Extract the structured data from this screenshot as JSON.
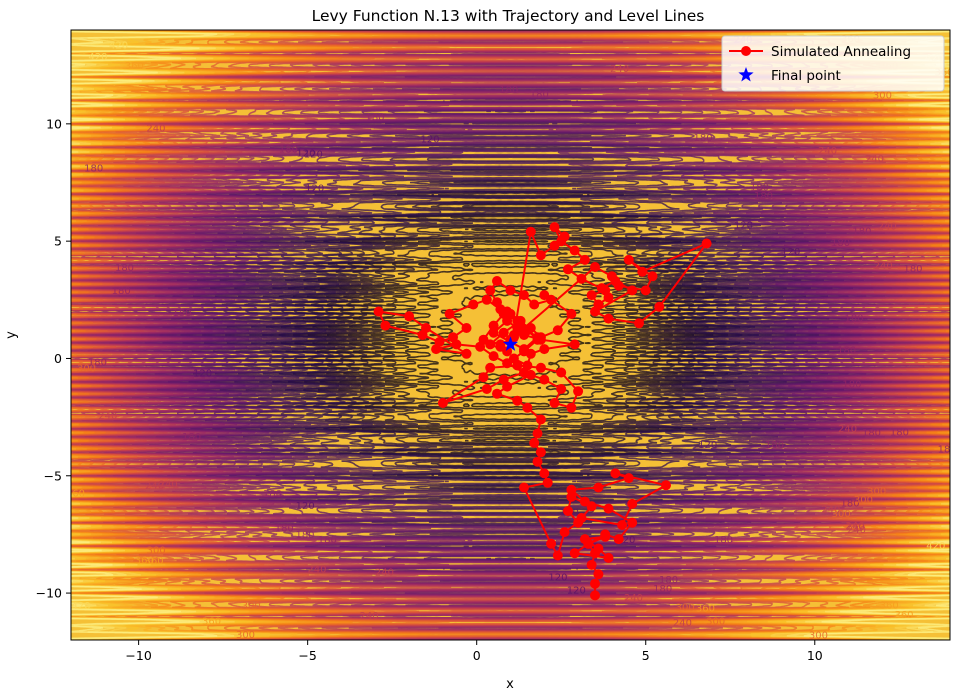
{
  "chart_data": {
    "type": "line",
    "title": "Levy Function N.13 with Trajectory and Level Lines",
    "xlabel": "x",
    "ylabel": "y",
    "xlim": [
      -12,
      14
    ],
    "ylim": [
      -12,
      14
    ],
    "x_ticks": [
      -10,
      -5,
      0,
      5,
      10
    ],
    "y_ticks": [
      -10,
      -5,
      0,
      5,
      10
    ],
    "x_tick_labels": [
      "−10",
      "−5",
      "0",
      "5",
      "10"
    ],
    "y_tick_labels": [
      "−10",
      "−5",
      "0",
      "5",
      "10"
    ],
    "grid": false,
    "legend": {
      "position": "top-right",
      "entries": [
        {
          "label": "Simulated Annealing",
          "color": "#ff0000",
          "marker": "circle"
        },
        {
          "label": "Final point",
          "color": "#0000ff",
          "marker": "star"
        }
      ]
    },
    "contour": {
      "function": "Levy N.13",
      "colormap": "inferno",
      "level_labels": [
        "120",
        "180",
        "240",
        "300",
        "360",
        "420"
      ],
      "background_color": "#f5c036"
    },
    "series": [
      {
        "name": "Simulated Annealing",
        "color": "#ff0000",
        "x": [
          3.5,
          3.5,
          3.6,
          3.4,
          3.5,
          3.3,
          3.8,
          3.2,
          3.6,
          3.9,
          2.9,
          3.3,
          3.8,
          4.2,
          4.6,
          3.9,
          3.2,
          2.8,
          3.6,
          4.5,
          4.1,
          5.6,
          4.6,
          4.3,
          3.1,
          3.4,
          2.8,
          2.7,
          3.0,
          2.6,
          2.4,
          2.2,
          1.4,
          2.1,
          2.0,
          1.8,
          1.9,
          1.7,
          1.8,
          1.9,
          1.5,
          1.2,
          0.6,
          0.9,
          1.6,
          2.0,
          2.5,
          2.3,
          2.8,
          3.0,
          2.5,
          1.9,
          1.2,
          0.4,
          0.2,
          -1.0,
          0.3,
          0.8,
          1.4,
          0.9,
          0.5,
          0.1,
          -0.6,
          -1.2,
          -0.3,
          -1.5,
          -2.0,
          -2.9,
          -2.7,
          -1.6,
          -1.1,
          -0.7,
          -0.3,
          -0.8,
          -0.1,
          0.3,
          0.7,
          0.4,
          0.6,
          1.0,
          1.4,
          1.7,
          2.2,
          2.0,
          2.8,
          2.4,
          1.9,
          1.6,
          1.2,
          0.8,
          0.5,
          0.2,
          0.7,
          1.1,
          1.5,
          1.8,
          1.4,
          1.1,
          1.5,
          1.6,
          2.0,
          2.9,
          1.9,
          1.4,
          1.2,
          0.9,
          0.5,
          1.0,
          1.4,
          1.8,
          1.3,
          0.9,
          0.6,
          1.0,
          1.3,
          0.8,
          0.4,
          0.9,
          1.1,
          0.7,
          1.0,
          3.5,
          4.0,
          4.2,
          5.0,
          5.2,
          4.5,
          4.9,
          6.8,
          5.4,
          4.8,
          3.9,
          3.5,
          4.6,
          4.1,
          3.7,
          3.9,
          3.6,
          3.4,
          3.8,
          3.1,
          2.7,
          3.2,
          2.9,
          2.5,
          2.3,
          2.6,
          2.3,
          1.9,
          1.6,
          1.1
        ],
        "y": [
          -10.1,
          -9.6,
          -9.2,
          -8.8,
          -8.3,
          -7.9,
          -7.6,
          -7.7,
          -8.1,
          -8.5,
          -8.3,
          -7.9,
          -7.5,
          -7.7,
          -7.0,
          -6.4,
          -6.1,
          -5.6,
          -5.5,
          -5.1,
          -4.9,
          -5.4,
          -6.2,
          -7.1,
          -6.8,
          -6.3,
          -5.9,
          -6.5,
          -7.0,
          -7.4,
          -8.4,
          -7.9,
          -5.5,
          -5.3,
          -4.9,
          -4.4,
          -4.0,
          -3.6,
          -3.2,
          -2.6,
          -2.1,
          -1.8,
          -1.5,
          -1.2,
          -0.7,
          -0.9,
          -1.3,
          -1.9,
          -2.1,
          -1.4,
          -0.6,
          -0.4,
          -0.3,
          -0.4,
          -0.8,
          -1.9,
          -1.3,
          -0.9,
          -0.6,
          -0.2,
          0.1,
          0.5,
          0.6,
          0.4,
          0.2,
          1.3,
          1.8,
          2.0,
          1.4,
          1.0,
          0.7,
          0.9,
          1.3,
          1.9,
          2.3,
          2.5,
          2.1,
          2.9,
          3.3,
          2.9,
          2.7,
          2.3,
          2.5,
          2.7,
          1.9,
          1.2,
          0.9,
          1.3,
          1.6,
          1.9,
          1.4,
          0.8,
          0.6,
          0.9,
          1.2,
          0.8,
          0.3,
          0.0,
          -0.3,
          0.2,
          0.4,
          0.6,
          0.8,
          1.0,
          1.3,
          1.6,
          1.1,
          0.7,
          0.4,
          0.9,
          1.4,
          2.0,
          2.4,
          1.9,
          1.6,
          1.1,
          0.6,
          0.3,
          0.9,
          0.5,
          0.8,
          3.9,
          3.5,
          3.1,
          2.9,
          3.5,
          4.2,
          3.7,
          4.9,
          2.2,
          1.5,
          1.7,
          2.0,
          2.9,
          3.3,
          3.0,
          2.6,
          2.3,
          2.7,
          2.9,
          3.4,
          3.8,
          4.2,
          4.6,
          5.0,
          5.6,
          5.2,
          4.8,
          4.4,
          5.4,
          1.0
        ],
        "point_radius": 5,
        "final_point": {
          "x": 1.0,
          "y": 0.6,
          "color": "#0000ff",
          "marker": "star"
        }
      }
    ]
  }
}
